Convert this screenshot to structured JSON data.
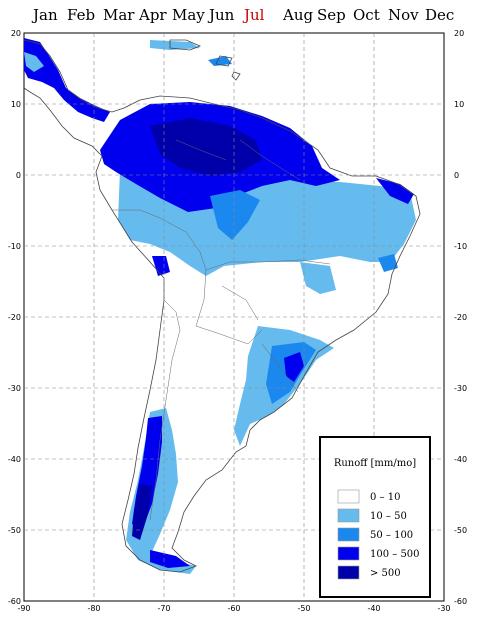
{
  "months": [
    {
      "label": "Jan",
      "selected": false
    },
    {
      "label": "Feb",
      "selected": false
    },
    {
      "label": "Mar",
      "selected": false
    },
    {
      "label": "Apr",
      "selected": false
    },
    {
      "label": "May",
      "selected": false
    },
    {
      "label": "Jun",
      "selected": false
    },
    {
      "label": "Jul",
      "selected": true
    },
    {
      "label": "Aug",
      "selected": false
    },
    {
      "label": "Sep",
      "selected": false
    },
    {
      "label": "Oct",
      "selected": false
    },
    {
      "label": "Nov",
      "selected": false
    },
    {
      "label": "Dec",
      "selected": false
    }
  ],
  "colors": {
    "selected_month": "#cc0000",
    "class_0_10": "#ffffff",
    "class_10_50": "#66bbee",
    "class_50_100": "#1a88ee",
    "class_100_500": "#0000ee",
    "class_gt_500": "#0000aa",
    "grid": "#888888"
  },
  "map": {
    "lon_range": [
      -90,
      -30
    ],
    "lat_range": [
      -60,
      20
    ],
    "lon_ticks": [
      "-90",
      "-80",
      "-70",
      "-60",
      "-50",
      "-40",
      "-30"
    ],
    "lat_ticks_left": [
      "20",
      "10",
      "0",
      "-10",
      "-20",
      "-30",
      "-40",
      "-50",
      "-60"
    ],
    "lat_ticks_right": [
      "20",
      "10",
      "0",
      "-10",
      "-20",
      "-30",
      "-40",
      "-50",
      "-60"
    ],
    "grid": true
  },
  "legend": {
    "title": "Runoff [mm/mo]",
    "items": [
      {
        "label": "0  –  10",
        "color": "#ffffff"
      },
      {
        "label": "10  –  50",
        "color": "#66bbee"
      },
      {
        "label": "50  –  100",
        "color": "#1a88ee"
      },
      {
        "label": "100  –  500",
        "color": "#0000ee"
      },
      {
        "label": "> 500",
        "color": "#0000aa"
      }
    ]
  }
}
